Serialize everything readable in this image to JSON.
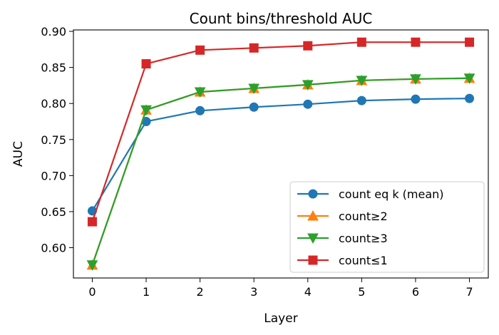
{
  "chart_data": {
    "type": "line",
    "title": "Count bins/threshold AUC",
    "xlabel": "Layer",
    "ylabel": "AUC",
    "x": [
      0,
      1,
      2,
      3,
      4,
      5,
      6,
      7
    ],
    "xticks": [
      "0",
      "1",
      "2",
      "3",
      "4",
      "5",
      "6",
      "7"
    ],
    "yticks": [
      "0.60",
      "0.65",
      "0.70",
      "0.75",
      "0.80",
      "0.85",
      "0.90"
    ],
    "xlim": [
      -0.35,
      7.35
    ],
    "ylim": [
      0.558,
      0.902
    ],
    "grid": false,
    "legend_position": "lower-right",
    "series": [
      {
        "name": "count eq k (mean)",
        "color": "#1f77b4",
        "marker": "circle",
        "values": [
          0.651,
          0.775,
          0.79,
          0.795,
          0.799,
          0.804,
          0.806,
          0.807
        ]
      },
      {
        "name": "count≥2",
        "color": "#ff7f0e",
        "marker": "triangle-up",
        "values": [
          0.576,
          0.791,
          0.816,
          0.821,
          0.826,
          0.832,
          0.834,
          0.835
        ]
      },
      {
        "name": "count≥3",
        "color": "#2ca02c",
        "marker": "triangle-down",
        "values": [
          0.576,
          0.791,
          0.816,
          0.821,
          0.826,
          0.832,
          0.834,
          0.835
        ]
      },
      {
        "name": "count≤1",
        "color": "#d62728",
        "marker": "square",
        "values": [
          0.636,
          0.855,
          0.874,
          0.877,
          0.88,
          0.885,
          0.885,
          0.885
        ]
      }
    ]
  }
}
